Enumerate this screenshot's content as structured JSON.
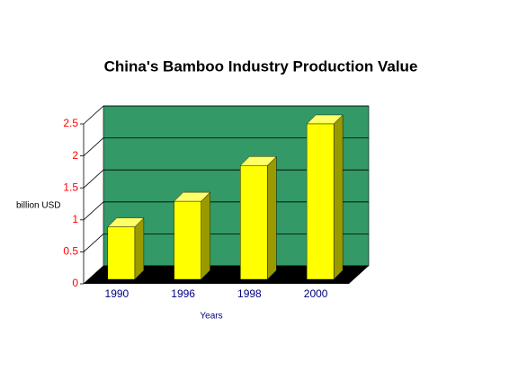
{
  "chart_data": {
    "type": "bar",
    "title": "China's Bamboo Industry Production Value",
    "x_label": "Years",
    "y_label": "billion USD",
    "categories": [
      "1990",
      "1996",
      "1998",
      "2000"
    ],
    "values": [
      0.82,
      1.22,
      1.78,
      2.43
    ],
    "color": "#ffff00",
    "wall_color": "#339966",
    "floor_color": "#000000",
    "ylim": [
      0,
      2.5
    ],
    "yticks": [
      0,
      0.5,
      1,
      1.5,
      2,
      2.5
    ],
    "grid": true
  }
}
